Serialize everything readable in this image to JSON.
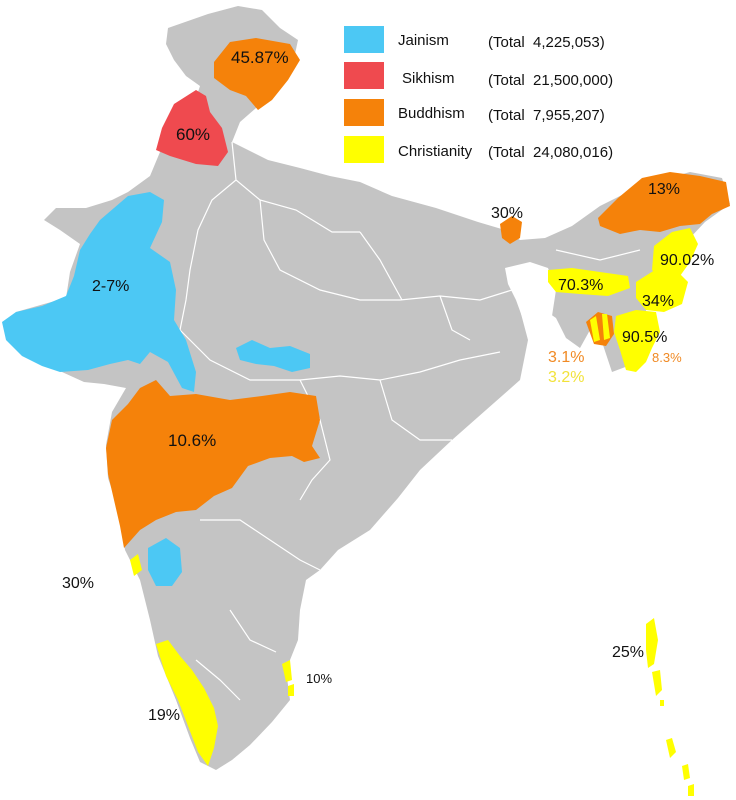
{
  "colors": {
    "land": "#c4c4c4",
    "border": "#ffffff",
    "jainism": "#4cc8f4",
    "sikhism": "#ef4a4f",
    "buddhism": "#f5820a",
    "christianity": "#ffff00",
    "small_label_orange": "#f08a24",
    "small_label_yellow": "#f2e23a"
  },
  "legend": [
    {
      "name": "Jainism",
      "total": "(Total  4,225,053)",
      "color_key": "jainism"
    },
    {
      "name": "Sikhism",
      "total": "(Total  21,500,000)",
      "color_key": "sikhism"
    },
    {
      "name": "Buddhism",
      "total": "(Total  7,955,207)",
      "color_key": "buddhism"
    },
    {
      "name": "Christianity",
      "total": "(Total  24,080,016)",
      "color_key": "christianity"
    }
  ],
  "regions": {
    "ladakh": "45.87%",
    "punjab": "60%",
    "sikkim": "30%",
    "arunachal": "13%",
    "nagaland": "90.02%",
    "meghalaya": "70.3%",
    "manipur": "34%",
    "mizoram": "90.5%",
    "mizoram_buddhism": "8.3%",
    "tripura_buddhism": "3.1%",
    "tripura_christianity": "3.2%",
    "gujarat_rajasthan": "2-7%",
    "maharashtra": "10.6%",
    "goa": "30%",
    "kerala": "19%",
    "pondicherry": "10%",
    "andaman": "25%"
  }
}
